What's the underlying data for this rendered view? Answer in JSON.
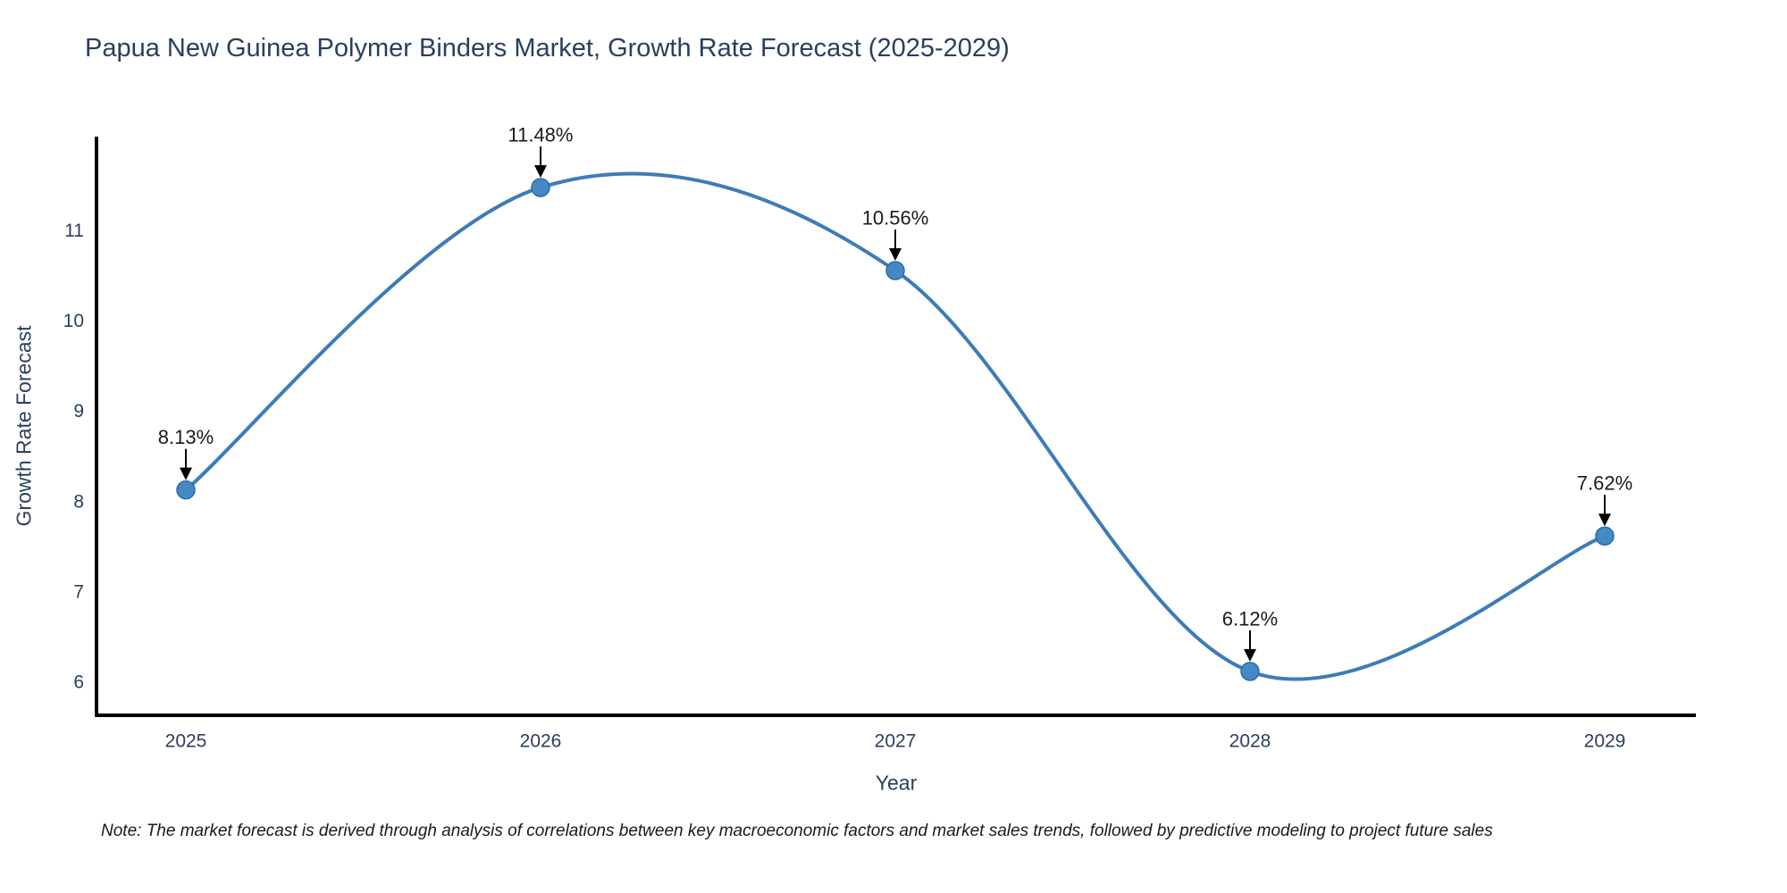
{
  "title": "Papua New Guinea Polymer Binders Market, Growth Rate Forecast (2025-2029)",
  "note": "Note: The market forecast is derived through analysis of correlations between key macroeconomic factors and market sales trends, followed by predictive modeling to project future sales",
  "chart_data": {
    "type": "line",
    "line_shape": "spline",
    "title": "Papua New Guinea Polymer Binders Market, Growth Rate Forecast (2025-2029)",
    "xlabel": "Year",
    "ylabel": "Growth Rate Forecast",
    "categories": [
      "2025",
      "2026",
      "2027",
      "2028",
      "2029"
    ],
    "values": [
      8.13,
      11.48,
      10.56,
      6.12,
      7.62
    ],
    "point_labels": [
      "8.13%",
      "11.48%",
      "10.56%",
      "6.12%",
      "7.62%"
    ],
    "y_ticks": [
      6,
      7,
      8,
      9,
      10,
      11
    ],
    "ylim": [
      5.63,
      12.04
    ],
    "grid": false,
    "legend": "none",
    "colors": {
      "line": "#3d7cb8",
      "marker_fill": "#4489c4",
      "marker_edge": "#2f6ba8",
      "axis_line": "#000000",
      "axis_text": "#2a3f5f",
      "annotation_text": "#1a1a1a",
      "arrow": "#000000",
      "background": "#ffffff"
    }
  }
}
